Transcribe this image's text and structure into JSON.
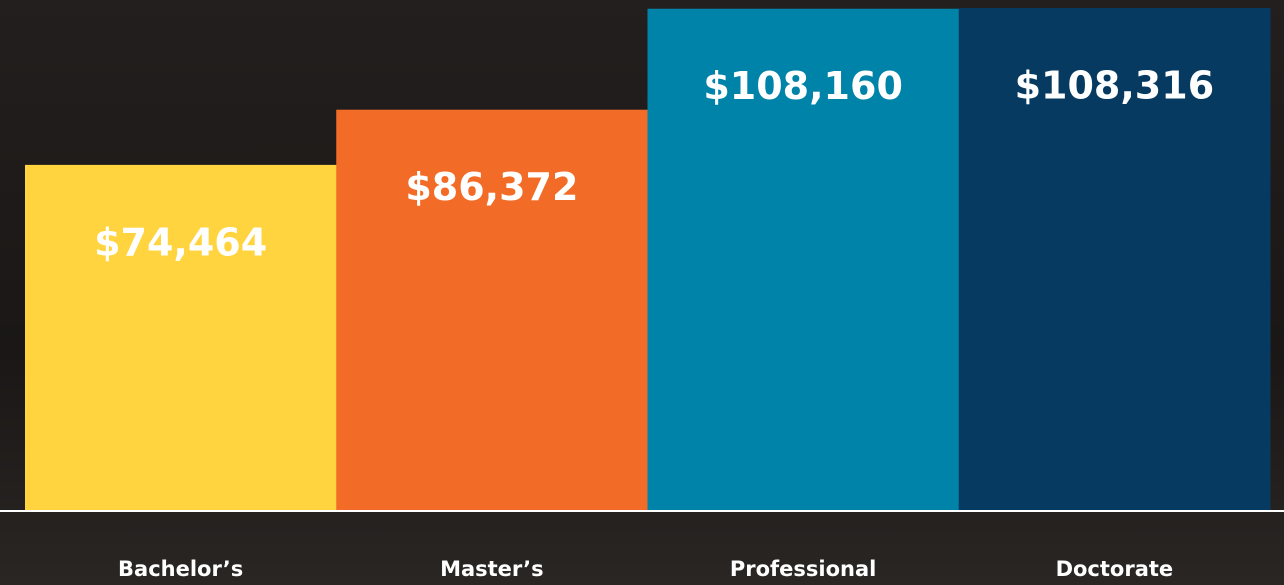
{
  "chart_data": {
    "type": "bar",
    "categories": [
      "Bachelor’s",
      "Master’s",
      "Professional",
      "Doctorate"
    ],
    "values": [
      74464,
      86372,
      108160,
      108316
    ],
    "value_labels": [
      "$74,464",
      "$86,372",
      "$108,160",
      "$108,316"
    ],
    "colors": [
      "#ffd43e",
      "#f26c27",
      "#0083a8",
      "#063a60"
    ]
  }
}
